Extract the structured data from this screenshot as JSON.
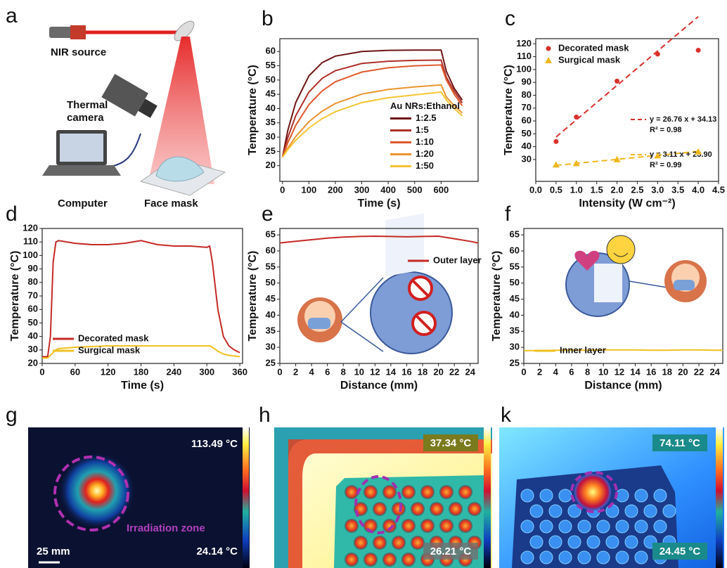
{
  "chart_data": [
    {
      "type": "line",
      "panel": "b",
      "xlabel": "Time (s)",
      "ylabel": "Temperature (°C)",
      "x": [
        0,
        20,
        50,
        100,
        150,
        200,
        300,
        400,
        500,
        600,
        620,
        650,
        680
      ],
      "series": [
        {
          "name": "1:2.5",
          "color": "#6e1414",
          "values": [
            23,
            32.3,
            42.1,
            51.5,
            56.1,
            58.4,
            60,
            60.4,
            60.5,
            60.5,
            53,
            47,
            43
          ]
        },
        {
          "name": "1:5",
          "color": "#b0302a",
          "values": [
            23,
            29.8,
            37.5,
            45.8,
            50.6,
            53.3,
            55.8,
            56.6,
            56.9,
            57,
            51,
            46,
            42
          ]
        },
        {
          "name": "1:10",
          "color": "#de5a2c",
          "values": [
            23,
            28,
            34.1,
            41.4,
            46.2,
            49.4,
            52.8,
            54.3,
            55,
            55.3,
            50,
            45,
            41
          ]
        },
        {
          "name": "1:20",
          "color": "#eb942f",
          "values": [
            23,
            26.2,
            30.2,
            35.4,
            39.1,
            41.8,
            45.1,
            46.7,
            47.6,
            48.3,
            44,
            41,
            38.5
          ]
        },
        {
          "name": "1:50",
          "color": "#f4c534",
          "values": [
            23,
            25.6,
            28.9,
            33.2,
            36.5,
            38.9,
            42.1,
            43.8,
            44.8,
            45.8,
            43,
            40,
            37.5
          ]
        }
      ],
      "legend_title": "Au NRs:Ethanol",
      "legend": "center-right",
      "grid": false,
      "xlim": [
        -10,
        740
      ],
      "xticks": [
        0,
        100,
        200,
        300,
        400,
        500,
        600
      ],
      "ylim": [
        14.5,
        64.5
      ],
      "yticks": [
        20,
        25,
        30,
        35,
        40,
        45,
        50,
        55,
        60
      ]
    },
    {
      "type": "scatter",
      "panel": "c",
      "xlabel": "Intensity (W cm⁻²)",
      "ylabel": "Temperature (°C)",
      "series": [
        {
          "name": "Decorated mask",
          "color": "#d8312b",
          "marker": "circle",
          "x": [
            0.5,
            1,
            2,
            3,
            4
          ],
          "values": [
            44,
            63,
            91,
            112,
            115
          ]
        },
        {
          "name": "Surgical mask",
          "color": "#f0b71c",
          "marker": "triangle",
          "x": [
            0.5,
            1,
            2,
            3,
            4
          ],
          "values": [
            26,
            27,
            30,
            33,
            36
          ]
        }
      ],
      "fits": [
        {
          "slope": 26.76,
          "intercept": 34.13,
          "equation": "y = 26.76 x + 34.13",
          "r2": "R² = 0.98"
        },
        {
          "slope": 3.11,
          "intercept": 23.9,
          "equation": "y = 3.11 x + 23.90",
          "r2": "R² = 0.99"
        }
      ],
      "legend": "upper-left",
      "grid": false,
      "xlim": [
        0,
        4.5
      ],
      "xticks": [
        {
          "value": 0,
          "label": "0.0"
        },
        {
          "value": 0.5,
          "label": "0.5"
        },
        {
          "value": 1,
          "label": "1.0"
        },
        {
          "value": 1.5,
          "label": "1.5"
        },
        {
          "value": 2,
          "label": "2.0"
        },
        {
          "value": 2.5,
          "label": "2.5"
        },
        {
          "value": 3,
          "label": "3.0"
        },
        {
          "value": 3.5,
          "label": "3.5"
        },
        {
          "value": 4,
          "label": "4.0"
        },
        {
          "value": 4.5,
          "label": "4.5"
        }
      ],
      "ylim": [
        13,
        124
      ],
      "yticks": [
        30,
        40,
        50,
        60,
        70,
        80,
        90,
        100,
        110,
        120
      ]
    },
    {
      "type": "line",
      "panel": "d",
      "xlabel": "Time (s)",
      "ylabel": "Temperature (°C)",
      "x": [
        0,
        10,
        15,
        20,
        25,
        30,
        60,
        90,
        120,
        150,
        180,
        210,
        240,
        270,
        300,
        305,
        310,
        320,
        330,
        340,
        350,
        360
      ],
      "series": [
        {
          "name": "Decorated mask",
          "color": "#c42a25",
          "values": [
            25,
            25,
            40,
            95,
            110,
            111,
            109,
            108,
            108,
            109,
            111,
            108,
            107,
            107,
            106,
            107,
            95,
            60,
            40,
            33,
            30,
            28
          ]
        },
        {
          "name": "Surgical mask",
          "color": "#f0c020",
          "values": [
            24,
            24,
            26,
            28,
            30,
            31,
            32,
            32.5,
            33,
            33,
            33,
            33,
            33,
            33,
            33,
            33,
            32,
            29,
            27,
            26,
            25.5,
            25
          ]
        }
      ],
      "legend": "lower-left",
      "grid": false,
      "xlim": [
        0,
        365
      ],
      "xticks": [
        0,
        60,
        120,
        180,
        240,
        300,
        360
      ],
      "ylim": [
        20,
        120
      ],
      "yticks": [
        20,
        30,
        40,
        50,
        60,
        70,
        80,
        90,
        100,
        110,
        120
      ]
    },
    {
      "type": "line",
      "panel": "e",
      "xlabel": "Distance (mm)",
      "ylabel": "Temperature (°C)",
      "x": [
        0,
        2,
        4,
        6,
        8,
        10,
        12,
        14,
        16,
        18,
        20,
        22,
        24,
        25
      ],
      "series": [
        {
          "name": "Outer layer",
          "color": "#c42a25",
          "values": [
            62.5,
            63,
            63.5,
            64,
            64.3,
            64.5,
            64.6,
            64.5,
            64.4,
            64.5,
            64.6,
            63.8,
            63,
            62.5
          ]
        }
      ],
      "legend": "upper-right",
      "grid": false,
      "xlim": [
        0,
        25
      ],
      "xticks": [
        0,
        2,
        4,
        6,
        8,
        10,
        12,
        14,
        16,
        18,
        20,
        22,
        24
      ],
      "ylim": [
        25,
        67
      ],
      "yticks": [
        25,
        30,
        35,
        40,
        45,
        50,
        55,
        60,
        65
      ]
    },
    {
      "type": "line",
      "panel": "f",
      "xlabel": "Distance (mm)",
      "ylabel": "Temperature (°C)",
      "x": [
        0,
        2,
        4,
        6,
        8,
        10,
        12,
        14,
        16,
        18,
        20,
        22,
        24,
        25
      ],
      "series": [
        {
          "name": "Inner layer",
          "color": "#f0c020",
          "values": [
            29,
            29,
            29.1,
            29.1,
            29.1,
            29.2,
            29.2,
            29.2,
            29.1,
            29.1,
            29.2,
            29.2,
            29.1,
            29.1
          ]
        }
      ],
      "legend": "lower-left",
      "grid": false,
      "xlim": [
        0,
        25
      ],
      "xticks": [
        0,
        2,
        4,
        6,
        8,
        10,
        12,
        14,
        16,
        18,
        20,
        22,
        24
      ],
      "ylim": [
        25,
        67
      ],
      "yticks": [
        25,
        30,
        35,
        40,
        45,
        50,
        55,
        60,
        65
      ]
    }
  ],
  "schematic": {
    "panel": "a",
    "source": "NIR source",
    "camera": [
      "Thermal",
      "camera"
    ],
    "computer": "Computer",
    "mask": "Face mask"
  },
  "images": [
    {
      "panel": "g",
      "max": "113.49 °C",
      "min": "24.14 °C",
      "zone": "Irradiation zone",
      "scale": "25 mm"
    },
    {
      "panel": "h",
      "max": "37.34 °C",
      "min": "26.21 °C"
    },
    {
      "panel": "k",
      "max": "74.11 °C",
      "min": "24.45 °C"
    }
  ]
}
